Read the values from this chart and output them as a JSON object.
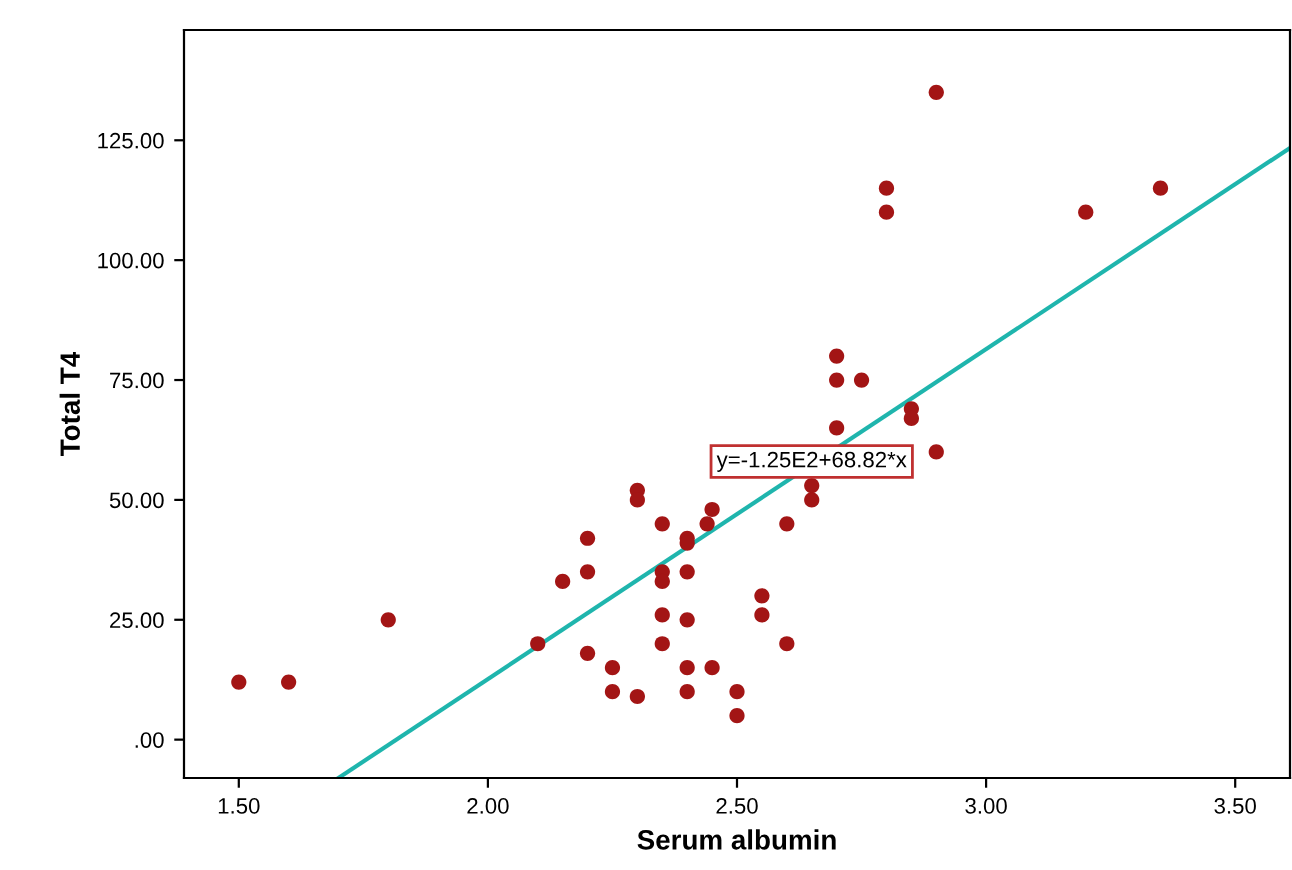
{
  "chart_data": {
    "type": "scatter",
    "xlabel": "Serum albumin",
    "ylabel": "Total T4",
    "xlim": [
      1.39,
      3.61
    ],
    "ylim": [
      -8,
      148
    ],
    "xticks": [
      {
        "value": 1.5,
        "label": "1.50"
      },
      {
        "value": 2.0,
        "label": "2.00"
      },
      {
        "value": 2.5,
        "label": "2.50"
      },
      {
        "value": 3.0,
        "label": "3.00"
      },
      {
        "value": 3.5,
        "label": "3.50"
      }
    ],
    "yticks": [
      {
        "value": 0,
        "label": ".00"
      },
      {
        "value": 25,
        "label": "25.00"
      },
      {
        "value": 50,
        "label": "50.00"
      },
      {
        "value": 75,
        "label": "75.00"
      },
      {
        "value": 100,
        "label": "100.00"
      },
      {
        "value": 125,
        "label": "125.00"
      }
    ],
    "grid": false,
    "legend": false,
    "marker": "circle",
    "series": [
      {
        "color": "#a31515",
        "x": [
          1.5,
          1.6,
          1.8,
          2.1,
          2.15,
          2.2,
          2.2,
          2.2,
          2.25,
          2.25,
          2.3,
          2.3,
          2.3,
          2.35,
          2.35,
          2.35,
          2.35,
          2.35,
          2.4,
          2.4,
          2.4,
          2.4,
          2.4,
          2.4,
          2.45,
          2.44,
          2.45,
          2.5,
          2.5,
          2.55,
          2.55,
          2.6,
          2.6,
          2.65,
          2.65,
          2.7,
          2.85,
          2.85,
          2.9,
          2.9,
          2.8,
          2.8,
          3.2,
          3.35,
          2.7,
          2.7,
          2.75
        ],
        "values": [
          12,
          12,
          25,
          20,
          33,
          42,
          35,
          18,
          15,
          10,
          52,
          50,
          9,
          45,
          35,
          33,
          26,
          20,
          42,
          41,
          35,
          25,
          15,
          10,
          48,
          45,
          15,
          10,
          5,
          30,
          26,
          20,
          45,
          53,
          50,
          65,
          69,
          67,
          60,
          135,
          115,
          110,
          110,
          115,
          80,
          75,
          75
        ]
      },
      {
        "type": "line",
        "color": "#1fb5ad",
        "x": [
          1.7,
          3.61
        ],
        "values": [
          -8.0,
          123.4
        ],
        "line_style": "solid",
        "marker": "none"
      }
    ],
    "annotations": [
      {
        "text": "y=-1.25E2+68.82*x",
        "x": 2.65,
        "y": 58
      }
    ]
  }
}
